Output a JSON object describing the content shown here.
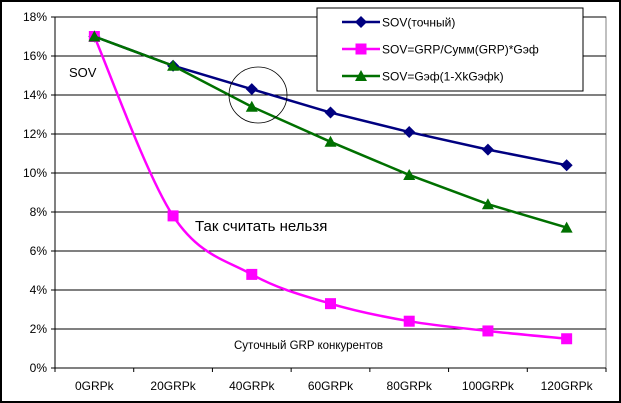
{
  "chart_data": {
    "type": "line",
    "categories": [
      "0GRPk",
      "20GRPk",
      "40GRPk",
      "60GRPk",
      "80GRPk",
      "100GRPk",
      "120GRPk"
    ],
    "ylim": [
      0,
      18
    ],
    "yticks": [
      "0%",
      "2%",
      "4%",
      "6%",
      "8%",
      "10%",
      "12%",
      "14%",
      "16%",
      "18%"
    ],
    "ytick_values": [
      0,
      2,
      4,
      6,
      8,
      10,
      12,
      14,
      16,
      18
    ],
    "grid": true,
    "legend_placement": "top-right",
    "ylabel": "SOV",
    "xlabel": "Суточный GRP конкурентов",
    "annotation": "Так считать нельзя",
    "series": [
      {
        "name": "SOV(точный)",
        "color": "#000080",
        "marker": "diamond",
        "smooth": false,
        "values": [
          17.0,
          15.5,
          14.3,
          13.1,
          12.1,
          11.2,
          10.4
        ]
      },
      {
        "name": "SOV=GRP/Сумм(GRP)*Gэф",
        "color": "#FF00FF",
        "marker": "square",
        "smooth": true,
        "values": [
          17.0,
          7.8,
          4.8,
          3.3,
          2.4,
          1.9,
          1.5
        ]
      },
      {
        "name": "SOV=Gэф(1-XkGэфk)",
        "color": "#007000",
        "marker": "triangle",
        "smooth": false,
        "values": [
          17.0,
          15.5,
          13.4,
          11.6,
          9.9,
          8.4,
          7.2
        ]
      }
    ]
  }
}
